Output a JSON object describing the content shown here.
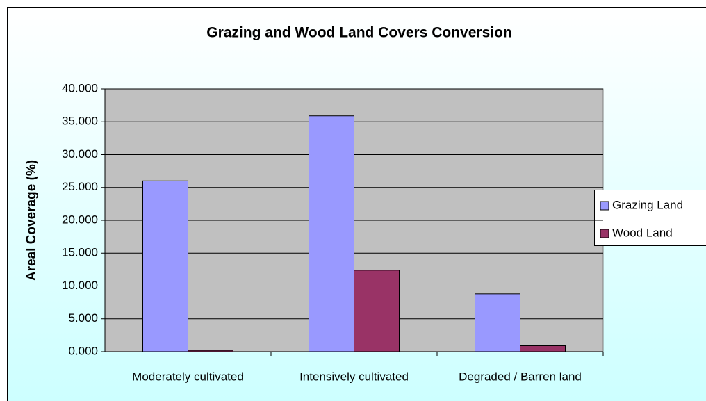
{
  "chart_data": {
    "type": "bar",
    "title": "Grazing and Wood Land Covers Conversion",
    "y_label": "Areal Coverage (%)",
    "categories": [
      "Moderately cultivated",
      "Intensively cultivated",
      "Degraded / Barren land"
    ],
    "series": [
      {
        "name": "Grazing Land",
        "color": "#9999ff",
        "values": [
          26.0,
          35.9,
          8.8
        ]
      },
      {
        "name": "Wood Land",
        "color": "#993366",
        "values": [
          0.2,
          12.4,
          0.9
        ]
      }
    ],
    "ylim": [
      0,
      40
    ],
    "yticks": [
      {
        "value": 0,
        "label": "0.000"
      },
      {
        "value": 5,
        "label": "5.000"
      },
      {
        "value": 10,
        "label": "10.000"
      },
      {
        "value": 15,
        "label": "15.000"
      },
      {
        "value": 20,
        "label": "20.000"
      },
      {
        "value": 25,
        "label": "25.000"
      },
      {
        "value": 30,
        "label": "30.000"
      },
      {
        "value": 35,
        "label": "35.000"
      },
      {
        "value": 40,
        "label": "40.000"
      }
    ],
    "grid": true,
    "legend": "right"
  }
}
